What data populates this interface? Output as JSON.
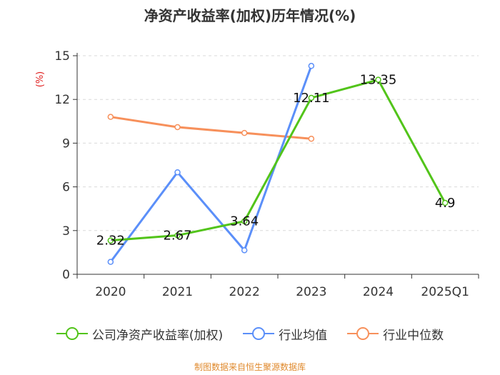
{
  "chart_data": {
    "type": "line",
    "title": "净资产收益率(加权)历年情况(%)",
    "ylabel": "(%)",
    "xlabel": "",
    "categories": [
      "2020",
      "2021",
      "2022",
      "2023",
      "2024",
      "2025Q1"
    ],
    "ylim": [
      0,
      15
    ],
    "yticks": [
      0,
      3,
      6,
      9,
      12,
      15
    ],
    "grid": true,
    "legend_position": "bottom",
    "series": [
      {
        "name": "公司净资产收益率(加权)",
        "color": "#52c41a",
        "values": [
          2.32,
          2.67,
          3.64,
          12.11,
          13.35,
          4.9
        ],
        "labels": [
          "2.32",
          "2.67",
          "3.64",
          "12.11",
          "13.35",
          "4.9"
        ]
      },
      {
        "name": "行业均值",
        "color": "#5b8ff9",
        "values": [
          0.85,
          7.0,
          1.65,
          14.3,
          null,
          null
        ]
      },
      {
        "name": "行业中位数",
        "color": "#f7905b",
        "values": [
          10.8,
          10.1,
          9.7,
          9.3,
          null,
          null
        ]
      }
    ]
  },
  "source": "制图数据来自恒生聚源数据库"
}
